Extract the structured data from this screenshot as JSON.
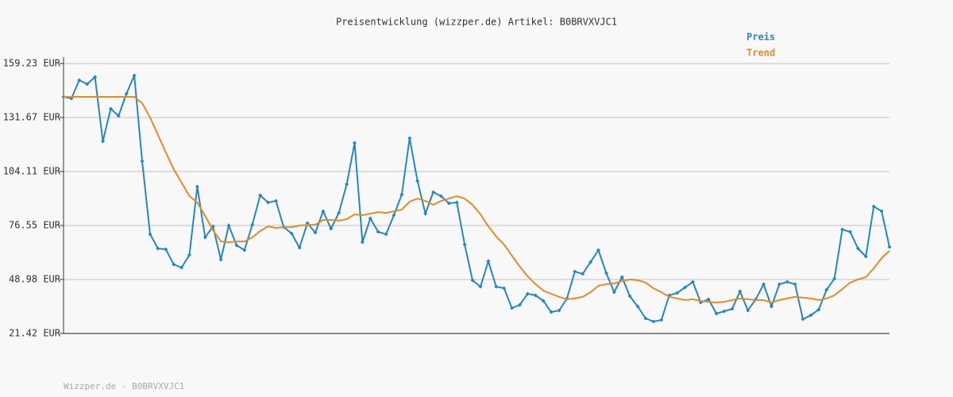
{
  "chart_data": {
    "type": "line",
    "title": "Preisentwicklung (wizzper.de) Artikel: B0BRVXVJC1",
    "footer": "Wizzper.de - B0BRVXVJC1",
    "ylim": [
      21.42,
      159.23
    ],
    "yticks": [
      {
        "value": 21.42,
        "label": "21.42 EUR"
      },
      {
        "value": 48.98,
        "label": "48.98 EUR"
      },
      {
        "value": 76.55,
        "label": "76.55 EUR"
      },
      {
        "value": 104.11,
        "label": "104.11 EUR"
      },
      {
        "value": 131.67,
        "label": "131.67 EUR"
      },
      {
        "value": 159.23,
        "label": "159.23 EUR"
      }
    ],
    "grid": true,
    "series": [
      {
        "name": "Preis",
        "color": "#2387c4",
        "markers": true,
        "values": [
          142.21,
          141.4,
          150.72,
          148.69,
          152.34,
          119.51,
          136.13,
          132.48,
          143.83,
          153.15,
          109.38,
          72.09,
          64.79,
          64.39,
          56.69,
          55.07,
          61.55,
          96.41,
          70.47,
          76.14,
          59.12,
          76.55,
          66.41,
          63.98,
          76.95,
          91.95,
          88.3,
          89.11,
          75.74,
          72.5,
          65.2,
          77.76,
          72.9,
          83.84,
          74.93,
          83.03,
          97.62,
          118.7,
          68.04,
          80.2,
          73.31,
          72.09,
          81.82,
          92.35,
          121.13,
          99.25,
          82.63,
          93.57,
          91.55,
          87.9,
          88.3,
          66.82,
          48.58,
          45.34,
          58.31,
          45.34,
          44.53,
          34.4,
          36.02,
          41.69,
          40.88,
          38.05,
          32.37,
          33.18,
          39.26,
          53.04,
          51.83,
          57.9,
          63.98,
          52.23,
          42.5,
          50.2,
          40.47,
          35.21,
          29.13,
          27.51,
          28.32,
          40.88,
          42.09,
          44.93,
          47.77,
          37.23,
          38.85,
          31.56,
          32.77,
          33.99,
          42.91,
          33.18,
          38.85,
          46.56,
          35.21,
          46.56,
          47.77,
          46.56,
          28.72,
          30.75,
          33.58,
          43.72,
          49.41,
          74.52,
          73.31,
          64.79,
          60.74,
          86.27,
          83.84,
          65.6
        ]
      },
      {
        "name": "Trend",
        "color": "#e38b25",
        "markers": false,
        "values": [
          142.2,
          142.2,
          142.2,
          142.2,
          142.2,
          142.2,
          142.2,
          142.2,
          142.2,
          142.2,
          138.97,
          131.67,
          122.75,
          113.83,
          105.3,
          98.43,
          91.54,
          88.3,
          81.4,
          74.1,
          68.4,
          68.0,
          68.4,
          68.4,
          70.5,
          73.7,
          76.1,
          75.3,
          75.7,
          75.7,
          76.5,
          76.9,
          76.9,
          79.4,
          79.4,
          79.0,
          79.8,
          82.2,
          81.8,
          82.6,
          83.4,
          83.0,
          83.8,
          84.7,
          88.7,
          90.3,
          89.1,
          87.1,
          89.1,
          90.3,
          91.5,
          90.3,
          87.1,
          82.2,
          76.1,
          70.9,
          66.8,
          61.1,
          55.5,
          50.6,
          46.6,
          43.3,
          41.7,
          40.1,
          38.9,
          39.3,
          40.1,
          42.5,
          45.8,
          46.6,
          47.0,
          48.2,
          49.0,
          48.6,
          47.4,
          44.5,
          42.5,
          40.1,
          39.3,
          38.5,
          38.9,
          38.0,
          37.6,
          37.2,
          37.6,
          38.5,
          39.3,
          38.9,
          38.5,
          38.5,
          37.2,
          38.5,
          39.3,
          40.1,
          39.7,
          39.3,
          38.5,
          39.3,
          40.9,
          44.1,
          47.4,
          49.0,
          50.2,
          54.7,
          59.9,
          63.6
        ]
      }
    ]
  }
}
